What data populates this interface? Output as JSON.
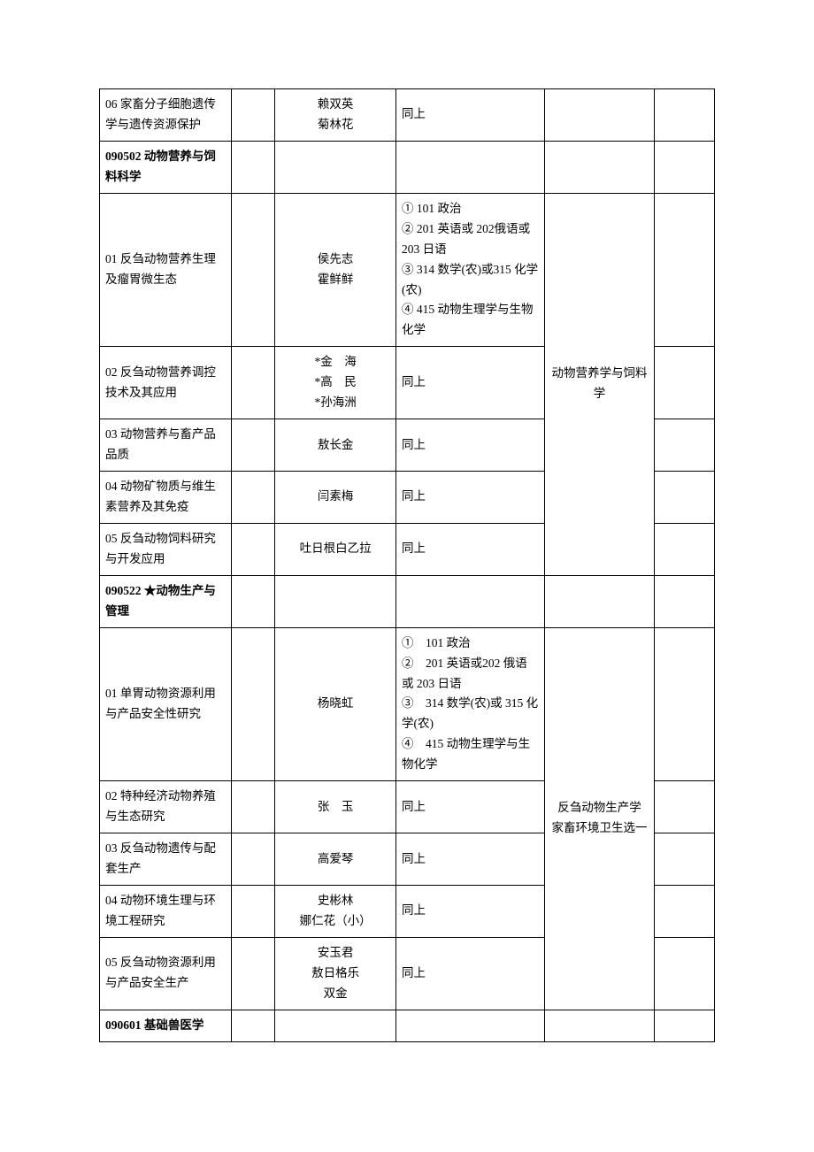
{
  "rows": {
    "r1": {
      "c1": "06 家畜分子细胞遗传学与遗传资源保护",
      "c3a": "赖双英",
      "c3b": "菊林花",
      "c4": "同上"
    },
    "r2": {
      "c1": "090502 动物营养与饲料科学"
    },
    "r3": {
      "c1": "01 反刍动物营养生理及瘤胃微生态",
      "c3a": "侯先志",
      "c3b": "霍鲜鲜",
      "c4l1": "①  101 政治",
      "c4l2": "②  201 英语或 202俄语或 203 日语",
      "c4l3": "③  314 数学(农)或315 化学(农)",
      "c4l4": "④  415 动物生理学与生物化学"
    },
    "groupA_c5": "动物营养学与饲料学",
    "r4": {
      "c1": "02 反刍动物营养调控技术及其应用",
      "c3a": "*金　海",
      "c3b": "*高　民",
      "c3c": "*孙海洲",
      "c4": "同上"
    },
    "r5": {
      "c1": "03 动物营养与畜产品品质",
      "c3": "敖长金",
      "c4": "同上"
    },
    "r6": {
      "c1": "04 动物矿物质与维生素营养及其免疫",
      "c3": "闫素梅",
      "c4": "同上"
    },
    "r7": {
      "c1": "05 反刍动物饲料研究与开发应用",
      "c3": "吐日根白乙拉",
      "c4": "同上"
    },
    "r8": {
      "c1": "090522 ★动物生产与管理"
    },
    "r9": {
      "c1": "01 单胃动物资源利用与产品安全性研究",
      "c3": "杨晓虹",
      "c4l1": "①　101 政治",
      "c4l2": "②　201 英语或202 俄语或 203 日语",
      "c4l3": "③　314 数学(农)或 315 化学(农)",
      "c4l4": "④　415 动物生理学与生物化学"
    },
    "groupB_c5l1": "反刍动物生产学",
    "groupB_c5l2": "家畜环境卫生选一",
    "r10": {
      "c1": "02 特种经济动物养殖与生态研究",
      "c3": "张　玉",
      "c4": "同上"
    },
    "r11": {
      "c1": "03 反刍动物遗传与配套生产",
      "c3": "高爱琴",
      "c4": "同上"
    },
    "r12": {
      "c1": "04 动物环境生理与环境工程研究",
      "c3a": "史彬林",
      "c3b": "娜仁花（小）",
      "c4": "同上"
    },
    "r13": {
      "c1": "05 反刍动物资源利用与产品安全生产",
      "c3a": "安玉君",
      "c3b": "敖日格乐",
      "c3c": "双金",
      "c4": "同上"
    },
    "r14": {
      "c1": "090601 基础兽医学"
    }
  },
  "style": {
    "font_family": "SimSun",
    "font_size_pt": 10.5,
    "border_color": "#000000",
    "background_color": "#ffffff",
    "text_color": "#000000",
    "col_widths_pct": [
      22,
      6,
      20,
      25,
      18,
      9
    ]
  }
}
